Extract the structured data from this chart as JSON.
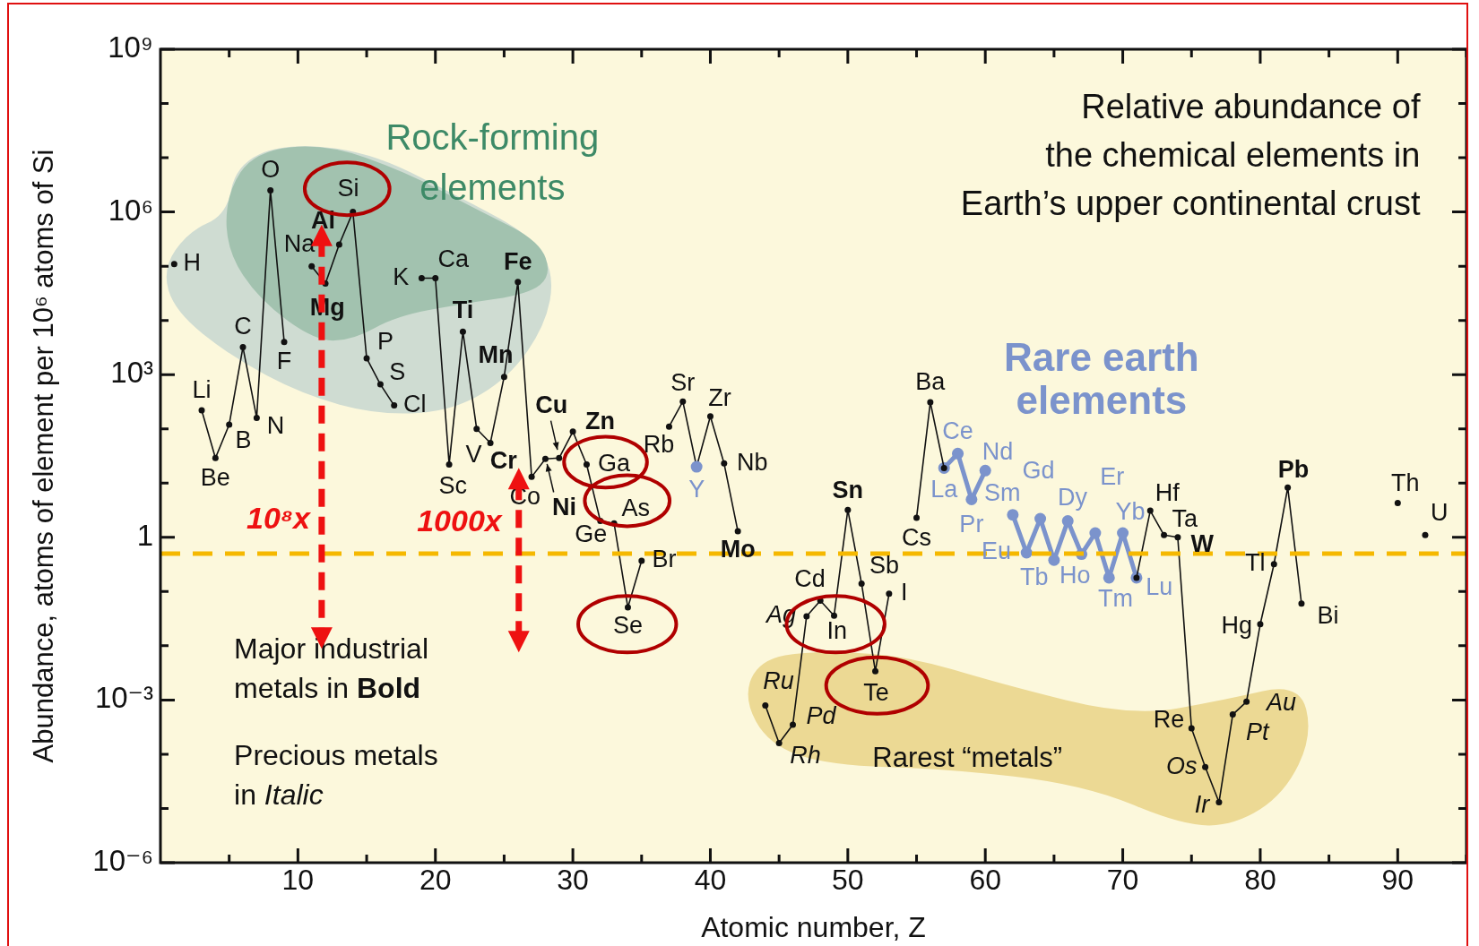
{
  "chart_data": {
    "type": "line",
    "title": "Relative abundance of\nthe chemical elements in\nEarth’s upper continental crust",
    "xlabel": "Atomic number, Z",
    "ylabel": "Abundance, atoms of element per 10⁶ atoms of Si",
    "log": "y",
    "xlim": [
      0,
      95
    ],
    "ylim": [
      1e-06,
      1000000000.0
    ],
    "xticks": [
      {
        "value": 5,
        "label": null
      },
      10,
      {
        "value": 15,
        "label": null
      },
      20,
      {
        "value": 25,
        "label": null
      },
      30,
      {
        "value": 35,
        "label": null
      },
      40,
      {
        "value": 45,
        "label": null
      },
      50,
      {
        "value": 55,
        "label": null
      },
      60,
      {
        "value": 65,
        "label": null
      },
      70,
      {
        "value": 75,
        "label": null
      },
      80,
      {
        "value": 85,
        "label": null
      },
      90,
      {
        "value": 95,
        "label": null
      }
    ],
    "yticks": [
      {
        "value": 1e-06,
        "label": "10⁻⁶"
      },
      {
        "value": 1e-05,
        "label": null
      },
      {
        "value": 0.0001,
        "label": null
      },
      {
        "value": 0.001,
        "label": "10⁻³"
      },
      {
        "value": 0.01,
        "label": null
      },
      {
        "value": 0.1,
        "label": null
      },
      {
        "value": 1,
        "label": "1"
      },
      {
        "value": 10,
        "label": null
      },
      {
        "value": 100,
        "label": null
      },
      {
        "value": 1000,
        "label": "10³"
      },
      {
        "value": 10000.0,
        "label": null
      },
      {
        "value": 100000.0,
        "label": null
      },
      {
        "value": 1000000.0,
        "label": "10⁶"
      },
      {
        "value": 10000000.0,
        "label": null
      },
      {
        "value": 100000000.0,
        "label": null
      },
      {
        "value": 1000000000.0,
        "label": "10⁹"
      }
    ],
    "x": [
      1,
      2,
      3,
      4,
      5,
      6,
      7,
      8,
      9,
      10,
      11,
      12,
      13,
      14,
      15,
      16,
      17,
      18,
      19,
      20,
      21,
      22,
      23,
      24,
      25,
      26,
      27,
      28,
      29,
      30,
      31,
      32,
      33,
      34,
      35,
      36,
      37,
      38,
      39,
      40,
      41,
      42,
      43,
      44,
      45,
      46,
      47,
      48,
      49,
      50,
      51,
      52,
      53,
      54,
      55,
      56,
      57,
      58,
      59,
      60,
      61,
      62,
      63,
      64,
      65,
      66,
      67,
      68,
      69,
      70,
      71,
      72,
      73,
      74,
      75,
      76,
      77,
      78,
      79,
      80,
      81,
      82,
      83,
      84,
      85,
      86,
      87,
      88,
      89,
      90,
      91,
      92
    ],
    "marker": "circle",
    "series": [
      {
        "color": "#111111",
        "values": [
          110000.0,
          null,
          220,
          29,
          120,
          3200,
          160,
          2500000.0,
          4000,
          null,
          100000.0,
          48000.0,
          250000.0,
          1000000.0,
          2000,
          660,
          270,
          null,
          60000.0,
          60000.0,
          22,
          6200,
          100,
          55,
          910,
          51000.0,
          13,
          28,
          29,
          89,
          22,
          2,
          1.8,
          0.051,
          0.37,
          null,
          110,
          320,
          20,
          170,
          23,
          1.3,
          null,
          0.00079,
          0.00016,
          0.00035,
          0.035,
          0.068,
          0.036,
          3.2,
          0.14,
          0.0034,
          0.091,
          null,
          2.3,
          310,
          19,
          null,
          null,
          null,
          null,
          null,
          null,
          null,
          null,
          null,
          null,
          null,
          null,
          null,
          0.18,
          3.1,
          1.1,
          1,
          0.0003,
          5.8e-05,
          1.3e-05,
          0.00054,
          0.00093,
          0.025,
          0.32,
          8.3,
          0.06,
          null,
          null,
          null,
          null,
          null,
          null,
          4.3,
          null,
          1.1
        ],
        "colors": [
          "#111111",
          null,
          "#111111",
          "#111111",
          "#111111",
          "#111111",
          "#111111",
          "#111111",
          "#111111",
          null,
          "#111111",
          "#111111",
          "#111111",
          "#111111",
          "#111111",
          "#111111",
          "#111111",
          null,
          "#111111",
          "#111111",
          "#111111",
          "#111111",
          "#111111",
          "#111111",
          "#111111",
          "#111111",
          "#111111",
          "#111111",
          "#111111",
          "#111111",
          "#111111",
          "#111111",
          "#111111",
          "#111111",
          "#111111",
          null,
          "#111111",
          "#111111",
          "#7b93cc",
          "#111111",
          "#111111",
          "#111111",
          null,
          "#111111",
          "#111111",
          "#111111",
          "#111111",
          "#111111",
          "#111111",
          "#111111",
          "#111111",
          "#111111",
          "#111111",
          null,
          "#111111",
          "#111111",
          "#111111",
          null,
          null,
          null,
          null,
          null,
          null,
          null,
          null,
          null,
          null,
          null,
          null,
          null,
          "#111111",
          "#111111",
          "#111111",
          "#111111",
          "#111111",
          "#111111",
          "#111111",
          "#111111",
          "#111111",
          "#111111",
          "#111111",
          "#111111",
          "#111111",
          null,
          null,
          null,
          null,
          null,
          null,
          "#111111",
          null,
          "#111111"
        ]
      },
      {
        "color": "#7b93cc",
        "values": [
          null,
          null,
          null,
          null,
          null,
          null,
          null,
          null,
          null,
          null,
          null,
          null,
          null,
          null,
          null,
          null,
          null,
          null,
          null,
          null,
          null,
          null,
          null,
          null,
          null,
          null,
          null,
          null,
          null,
          null,
          null,
          null,
          null,
          null,
          null,
          null,
          null,
          null,
          null,
          null,
          null,
          null,
          null,
          null,
          null,
          null,
          null,
          null,
          null,
          null,
          null,
          null,
          null,
          null,
          null,
          null,
          19,
          35,
          5,
          17,
          null,
          2.6,
          0.52,
          2.2,
          0.38,
          2,
          0.49,
          1.2,
          0.18,
          1.2,
          0.18,
          null,
          null,
          null,
          null,
          null,
          null,
          null,
          null,
          null,
          null,
          null,
          null,
          null,
          null,
          null,
          null,
          null,
          null,
          null,
          null,
          null
        ]
      }
    ],
    "ref_lines": [
      {
        "axis": "y",
        "value": 0.5,
        "color": "#f5b800",
        "line_style": "dashed"
      }
    ],
    "annotations": [
      {
        "text": "H",
        "x": 1,
        "y": 110000.0
      },
      {
        "text": "Li",
        "x": 3,
        "y": 220
      },
      {
        "text": "Be",
        "x": 4,
        "y": 29
      },
      {
        "text": "B",
        "x": 5,
        "y": 120
      },
      {
        "text": "C",
        "x": 6,
        "y": 3200
      },
      {
        "text": "N",
        "x": 7,
        "y": 160
      },
      {
        "text": "O",
        "x": 8,
        "y": 2500000.0
      },
      {
        "text": "F",
        "x": 9,
        "y": 4000
      },
      {
        "text": "Na",
        "x": 11,
        "y": 100000.0
      },
      {
        "text": "Mg",
        "x": 12,
        "y": 48000.0
      },
      {
        "text": "Al",
        "x": 13,
        "y": 250000.0
      },
      {
        "text": "Si",
        "x": 14,
        "y": 1000000.0
      },
      {
        "text": "P",
        "x": 15,
        "y": 2000
      },
      {
        "text": "S",
        "x": 16,
        "y": 660
      },
      {
        "text": "Cl",
        "x": 17,
        "y": 270
      },
      {
        "text": "K",
        "x": 19,
        "y": 60000.0
      },
      {
        "text": "Ca",
        "x": 20,
        "y": 60000.0
      },
      {
        "text": "Sc",
        "x": 21,
        "y": 22
      },
      {
        "text": "Ti",
        "x": 22,
        "y": 6200
      },
      {
        "text": "V",
        "x": 23,
        "y": 100
      },
      {
        "text": "Cr",
        "x": 24,
        "y": 55
      },
      {
        "text": "Mn",
        "x": 25,
        "y": 910
      },
      {
        "text": "Fe",
        "x": 26,
        "y": 51000.0
      },
      {
        "text": "Co",
        "x": 27,
        "y": 13
      },
      {
        "text": "Ni",
        "x": 28,
        "y": 28
      },
      {
        "text": "Cu",
        "x": 29,
        "y": 29
      },
      {
        "text": "Zn",
        "x": 30,
        "y": 89
      },
      {
        "text": "Ga",
        "x": 31,
        "y": 22
      },
      {
        "text": "Ge",
        "x": 32,
        "y": 2
      },
      {
        "text": "As",
        "x": 33,
        "y": 1.8
      },
      {
        "text": "Se",
        "x": 34,
        "y": 0.051
      },
      {
        "text": "Br",
        "x": 35,
        "y": 0.37
      },
      {
        "text": "Rb",
        "x": 37,
        "y": 110
      },
      {
        "text": "Sr",
        "x": 38,
        "y": 320
      },
      {
        "text": "Y",
        "x": 39,
        "y": 20
      },
      {
        "text": "Zr",
        "x": 40,
        "y": 170
      },
      {
        "text": "Nb",
        "x": 41,
        "y": 23
      },
      {
        "text": "Mo",
        "x": 42,
        "y": 1.3
      },
      {
        "text": "Ru",
        "x": 44,
        "y": 0.00079
      },
      {
        "text": "Rh",
        "x": 45,
        "y": 0.00016
      },
      {
        "text": "Pd",
        "x": 46,
        "y": 0.00035
      },
      {
        "text": "Ag",
        "x": 47,
        "y": 0.035
      },
      {
        "text": "Cd",
        "x": 48,
        "y": 0.068
      },
      {
        "text": "In",
        "x": 49,
        "y": 0.036
      },
      {
        "text": "Sn",
        "x": 50,
        "y": 3.2
      },
      {
        "text": "Sb",
        "x": 51,
        "y": 0.14
      },
      {
        "text": "Te",
        "x": 52,
        "y": 0.0034
      },
      {
        "text": "I",
        "x": 53,
        "y": 0.091
      },
      {
        "text": "Cs",
        "x": 55,
        "y": 2.3
      },
      {
        "text": "Ba",
        "x": 56,
        "y": 310
      },
      {
        "text": "La",
        "x": 57,
        "y": 19
      },
      {
        "text": "Ce",
        "x": 58,
        "y": 35
      },
      {
        "text": "Pr",
        "x": 59,
        "y": 5
      },
      {
        "text": "Nd",
        "x": 60,
        "y": 17
      },
      {
        "text": "Sm",
        "x": 62,
        "y": 2.6
      },
      {
        "text": "Eu",
        "x": 63,
        "y": 0.52
      },
      {
        "text": "Gd",
        "x": 64,
        "y": 2.2
      },
      {
        "text": "Tb",
        "x": 65,
        "y": 0.38
      },
      {
        "text": "Dy",
        "x": 66,
        "y": 2
      },
      {
        "text": "Ho",
        "x": 67,
        "y": 0.49
      },
      {
        "text": "Er",
        "x": 68,
        "y": 1.2
      },
      {
        "text": "Tm",
        "x": 69,
        "y": 0.18
      },
      {
        "text": "Yb",
        "x": 70,
        "y": 1.2
      },
      {
        "text": "Lu",
        "x": 71,
        "y": 0.18
      },
      {
        "text": "Hf",
        "x": 72,
        "y": 3.1
      },
      {
        "text": "Ta",
        "x": 73,
        "y": 1.1
      },
      {
        "text": "W",
        "x": 74,
        "y": 1
      },
      {
        "text": "Re",
        "x": 75,
        "y": 0.0003
      },
      {
        "text": "Os",
        "x": 76,
        "y": 5.8e-05
      },
      {
        "text": "Ir",
        "x": 77,
        "y": 1.3e-05
      },
      {
        "text": "Pt",
        "x": 78,
        "y": 0.00054
      },
      {
        "text": "Au",
        "x": 79,
        "y": 0.00093
      },
      {
        "text": "Hg",
        "x": 80,
        "y": 0.025
      },
      {
        "text": "Tl",
        "x": 81,
        "y": 0.32
      },
      {
        "text": "Pb",
        "x": 82,
        "y": 8.3
      },
      {
        "text": "Bi",
        "x": 83,
        "y": 0.06
      },
      {
        "text": "Th",
        "x": 90,
        "y": 4.3
      },
      {
        "text": "U",
        "x": 92,
        "y": 1.1
      },
      "Rock-forming elements",
      "Rare earth elements",
      "Rarest “metals”",
      "Major industrial metals in Bold",
      "Precious metals in Italic",
      "10⁸x",
      "1000x"
    ]
  }
}
